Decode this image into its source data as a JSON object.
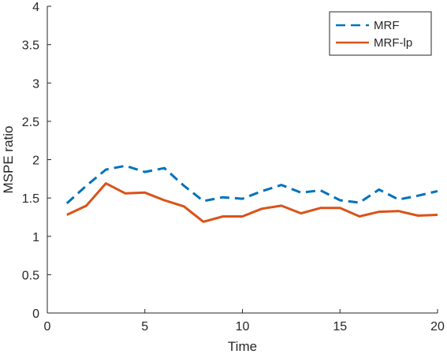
{
  "chart_data": {
    "type": "line",
    "title": "",
    "xlabel": "Time",
    "ylabel": "MSPE ratio",
    "xlim": [
      0,
      20
    ],
    "ylim": [
      0,
      4
    ],
    "xticks": [
      0,
      5,
      10,
      15,
      20
    ],
    "yticks": [
      0,
      0.5,
      1,
      1.5,
      2,
      2.5,
      3,
      3.5,
      4
    ],
    "ytick_labels": [
      "0",
      "0.5",
      "1",
      "1.5",
      "2",
      "2.5",
      "3",
      "3.5",
      "4"
    ],
    "grid": false,
    "legend_position": "top-right",
    "x": [
      1,
      2,
      3,
      4,
      5,
      6,
      7,
      8,
      9,
      10,
      11,
      12,
      13,
      14,
      15,
      16,
      17,
      18,
      19,
      20
    ],
    "series": [
      {
        "name": "MRF",
        "color": "#0072BD",
        "style": "dashed",
        "values": [
          1.43,
          1.66,
          1.87,
          1.92,
          1.84,
          1.89,
          1.66,
          1.46,
          1.51,
          1.49,
          1.59,
          1.67,
          1.57,
          1.6,
          1.47,
          1.44,
          1.61,
          1.48,
          1.53,
          1.59
        ]
      },
      {
        "name": "MRF-lp",
        "color": "#D95319",
        "style": "solid",
        "values": [
          1.28,
          1.4,
          1.69,
          1.56,
          1.57,
          1.47,
          1.39,
          1.19,
          1.26,
          1.26,
          1.36,
          1.4,
          1.3,
          1.37,
          1.37,
          1.26,
          1.32,
          1.33,
          1.27,
          1.28
        ]
      }
    ]
  }
}
